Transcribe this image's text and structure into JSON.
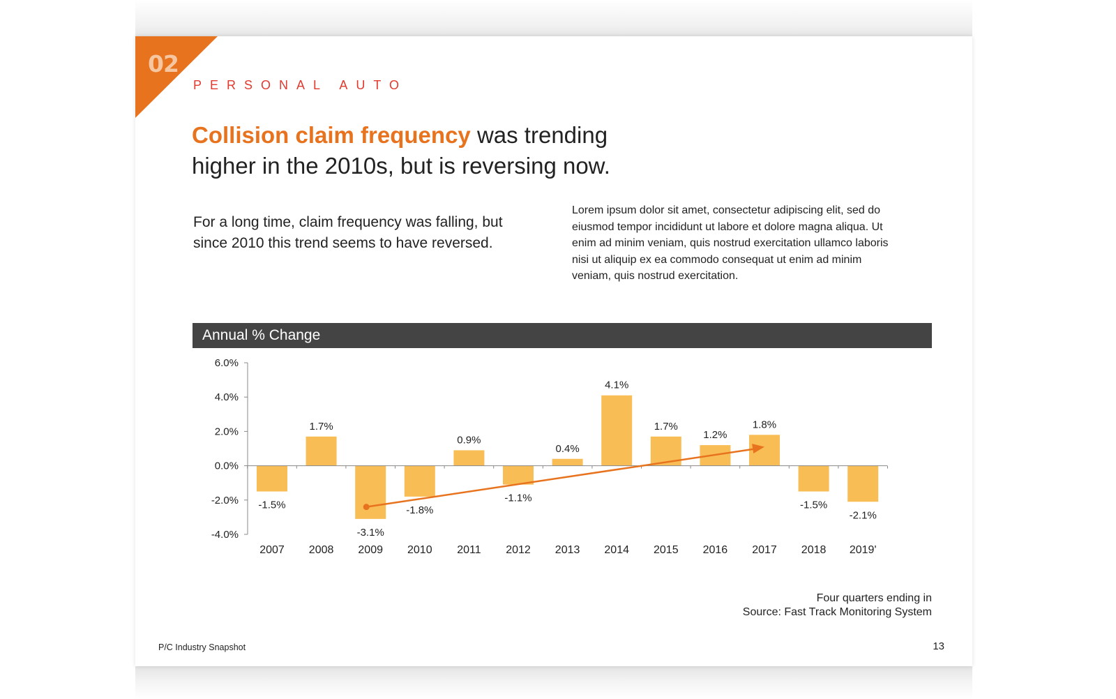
{
  "section": {
    "number": "02",
    "label": "PERSONAL AUTO"
  },
  "headline": {
    "accent": "Collision claim frequency",
    "rest_line1": " was trending",
    "rest_line2": "higher in the 2010s, but is reversing now."
  },
  "lead_text": "For a long time, claim frequency was falling, but since 2010 this trend seems to have reversed.",
  "body_text": "Lorem ipsum dolor sit amet, consectetur adipiscing elit, sed do eiusmod tempor incididunt ut labore et dolore magna aliqua. Ut enim ad minim veniam, quis nostrud exercitation ullamco laboris nisi ut aliquip ex ea commodo consequat ut enim ad minim veniam, quis nostrud exercitation.",
  "chart_header": "Annual % Change",
  "chart_note": {
    "line1": "Four quarters ending in",
    "line2": "Source: Fast Track Monitoring System"
  },
  "footer": {
    "left": "P/C Industry Snapshot",
    "page_number": "13"
  },
  "colors": {
    "accent_orange": "#e8731f",
    "bar_fill": "#f9bd55",
    "header_bar": "#444444",
    "section_label_red": "#e03a2f"
  },
  "chart_data": {
    "type": "bar",
    "title": "Annual % Change",
    "categories": [
      "2007",
      "2008",
      "2009",
      "2010",
      "2011",
      "2012",
      "2013",
      "2014",
      "2015",
      "2016",
      "2017",
      "2018",
      "2019'"
    ],
    "values": [
      -1.5,
      1.7,
      -3.1,
      -1.8,
      0.9,
      -1.1,
      0.4,
      4.1,
      1.7,
      1.2,
      1.8,
      -1.5,
      -2.1
    ],
    "data_labels": [
      "-1.5%",
      "1.7%",
      "-3.1%",
      "-1.8%",
      "0.9%",
      "-1.1%",
      "0.4%",
      "4.1%",
      "1.7%",
      "1.2%",
      "1.8%",
      "-1.5%",
      "-2.1%"
    ],
    "ylim": [
      -4.0,
      6.0
    ],
    "yticks": [
      6.0,
      4.0,
      2.0,
      0.0,
      -2.0,
      -4.0
    ],
    "ytick_labels": [
      "6.0%",
      "4.0%",
      "2.0%",
      "0.0%",
      "-2.0%",
      "-4.0%"
    ],
    "xlabel": "",
    "ylabel": "",
    "grid": false,
    "legend": "none",
    "trend_arrow": {
      "from_category": "2009",
      "from_value": -2.4,
      "to_category": "2017",
      "to_value": 1.1
    }
  }
}
